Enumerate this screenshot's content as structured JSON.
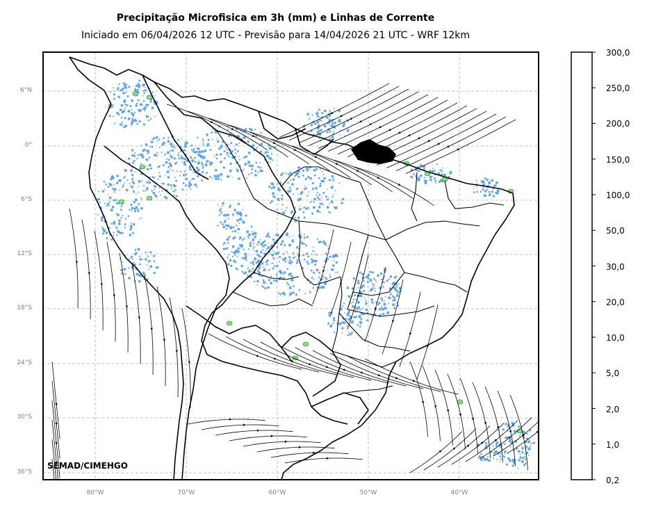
{
  "title": "Precipitação Microfisica em 3h (mm) e Linhas de Corrente",
  "subtitle": "Iniciado em 06/04/2026 12 UTC - Previsão para 14/04/2026 21 UTC - WRF 12km",
  "credit": "SEMAD/CIMEHGO",
  "lat_labels": [
    "6°N",
    "0°",
    "6°S",
    "12°S",
    "18°S",
    "24°S",
    "30°S",
    "36°S"
  ],
  "lon_labels": [
    "80°W",
    "70°W",
    "60°W",
    "50°W",
    "40°W"
  ],
  "colorbar": {
    "labels": [
      "0,2",
      "1,0",
      "2,0",
      "5,0",
      "10,0",
      "20,0",
      "30,0",
      "50,0",
      "100,0",
      "150,0",
      "200,0",
      "250,0",
      "300,0"
    ],
    "colors": [
      "#ececfa",
      "#cde6ee",
      "#73b8ff",
      "#8ca3ef",
      "#c5ff73",
      "#82e082",
      "#6aae6a",
      "#ffff66",
      "#ffc766",
      "#ff6666",
      "#d27774",
      "#b568b8"
    ]
  },
  "colors": {
    "rain": "#5ba4f0",
    "rain_heavy": "#82e082",
    "streamline": "#000000",
    "grid": "#b0b0b0",
    "border": "#000000"
  }
}
